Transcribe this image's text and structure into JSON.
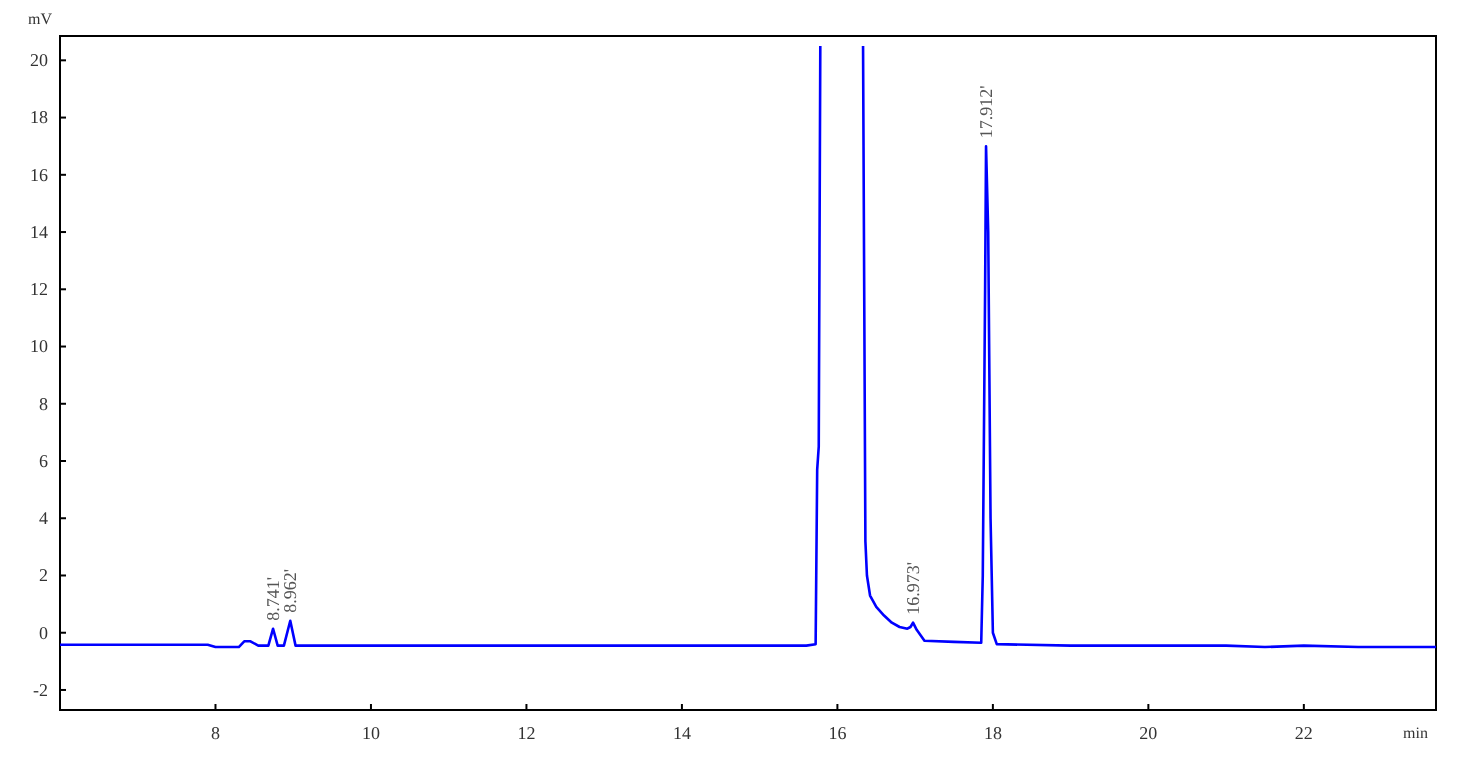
{
  "chart_data": {
    "type": "line",
    "xlabel": "min",
    "ylabel": "mV",
    "xlim": [
      6,
      23.7
    ],
    "ylim": [
      -2.7,
      20.85
    ],
    "xticks": [
      8,
      10,
      12,
      14,
      16,
      18,
      20,
      22
    ],
    "yticks": [
      -2,
      0,
      2,
      4,
      6,
      8,
      10,
      12,
      14,
      16,
      18,
      20
    ],
    "grid": false,
    "marker": "none",
    "line_style": "solid",
    "series": [
      {
        "color": "#0000ff",
        "x": [
          6,
          7.9,
          8.0,
          8.3,
          8.37,
          8.45,
          8.55,
          8.68,
          8.741,
          8.8,
          8.88,
          8.962,
          9.03,
          9.2,
          12.5,
          15.6,
          15.72,
          15.74,
          15.76,
          15.78,
          15.8,
          16.3,
          16.33,
          16.36,
          16.38,
          16.42,
          16.5,
          16.6,
          16.7,
          16.8,
          16.9,
          16.94,
          16.973,
          17.02,
          17.12,
          17.5,
          17.85,
          17.87,
          17.9,
          17.912,
          17.94,
          17.97,
          18.0,
          18.05,
          19,
          21,
          21.5,
          22,
          22.7,
          23.7
        ],
        "values": [
          -0.42,
          -0.42,
          -0.5,
          -0.5,
          -0.3,
          -0.3,
          -0.45,
          -0.45,
          0.14,
          -0.45,
          -0.45,
          0.42,
          -0.45,
          -0.45,
          -0.45,
          -0.45,
          -0.4,
          5.7,
          6.5,
          20.5,
          null,
          null,
          20.5,
          3.2,
          2.0,
          1.3,
          0.9,
          0.6,
          0.35,
          0.2,
          0.14,
          0.2,
          0.35,
          0.1,
          -0.28,
          -0.32,
          -0.35,
          2,
          12,
          17.0,
          14,
          4,
          0,
          -0.4,
          -0.45,
          -0.45,
          -0.5,
          -0.45,
          -0.5,
          -0.5
        ]
      }
    ],
    "annotations": [
      {
        "text": "8.741'",
        "x": 8.741,
        "y": 0.14
      },
      {
        "text": "8.962'",
        "x": 8.962,
        "y": 0.42
      },
      {
        "text": "16.973'",
        "x": 16.973,
        "y": 0.35
      },
      {
        "text": "17.912'",
        "x": 17.912,
        "y": 17.0
      }
    ]
  }
}
